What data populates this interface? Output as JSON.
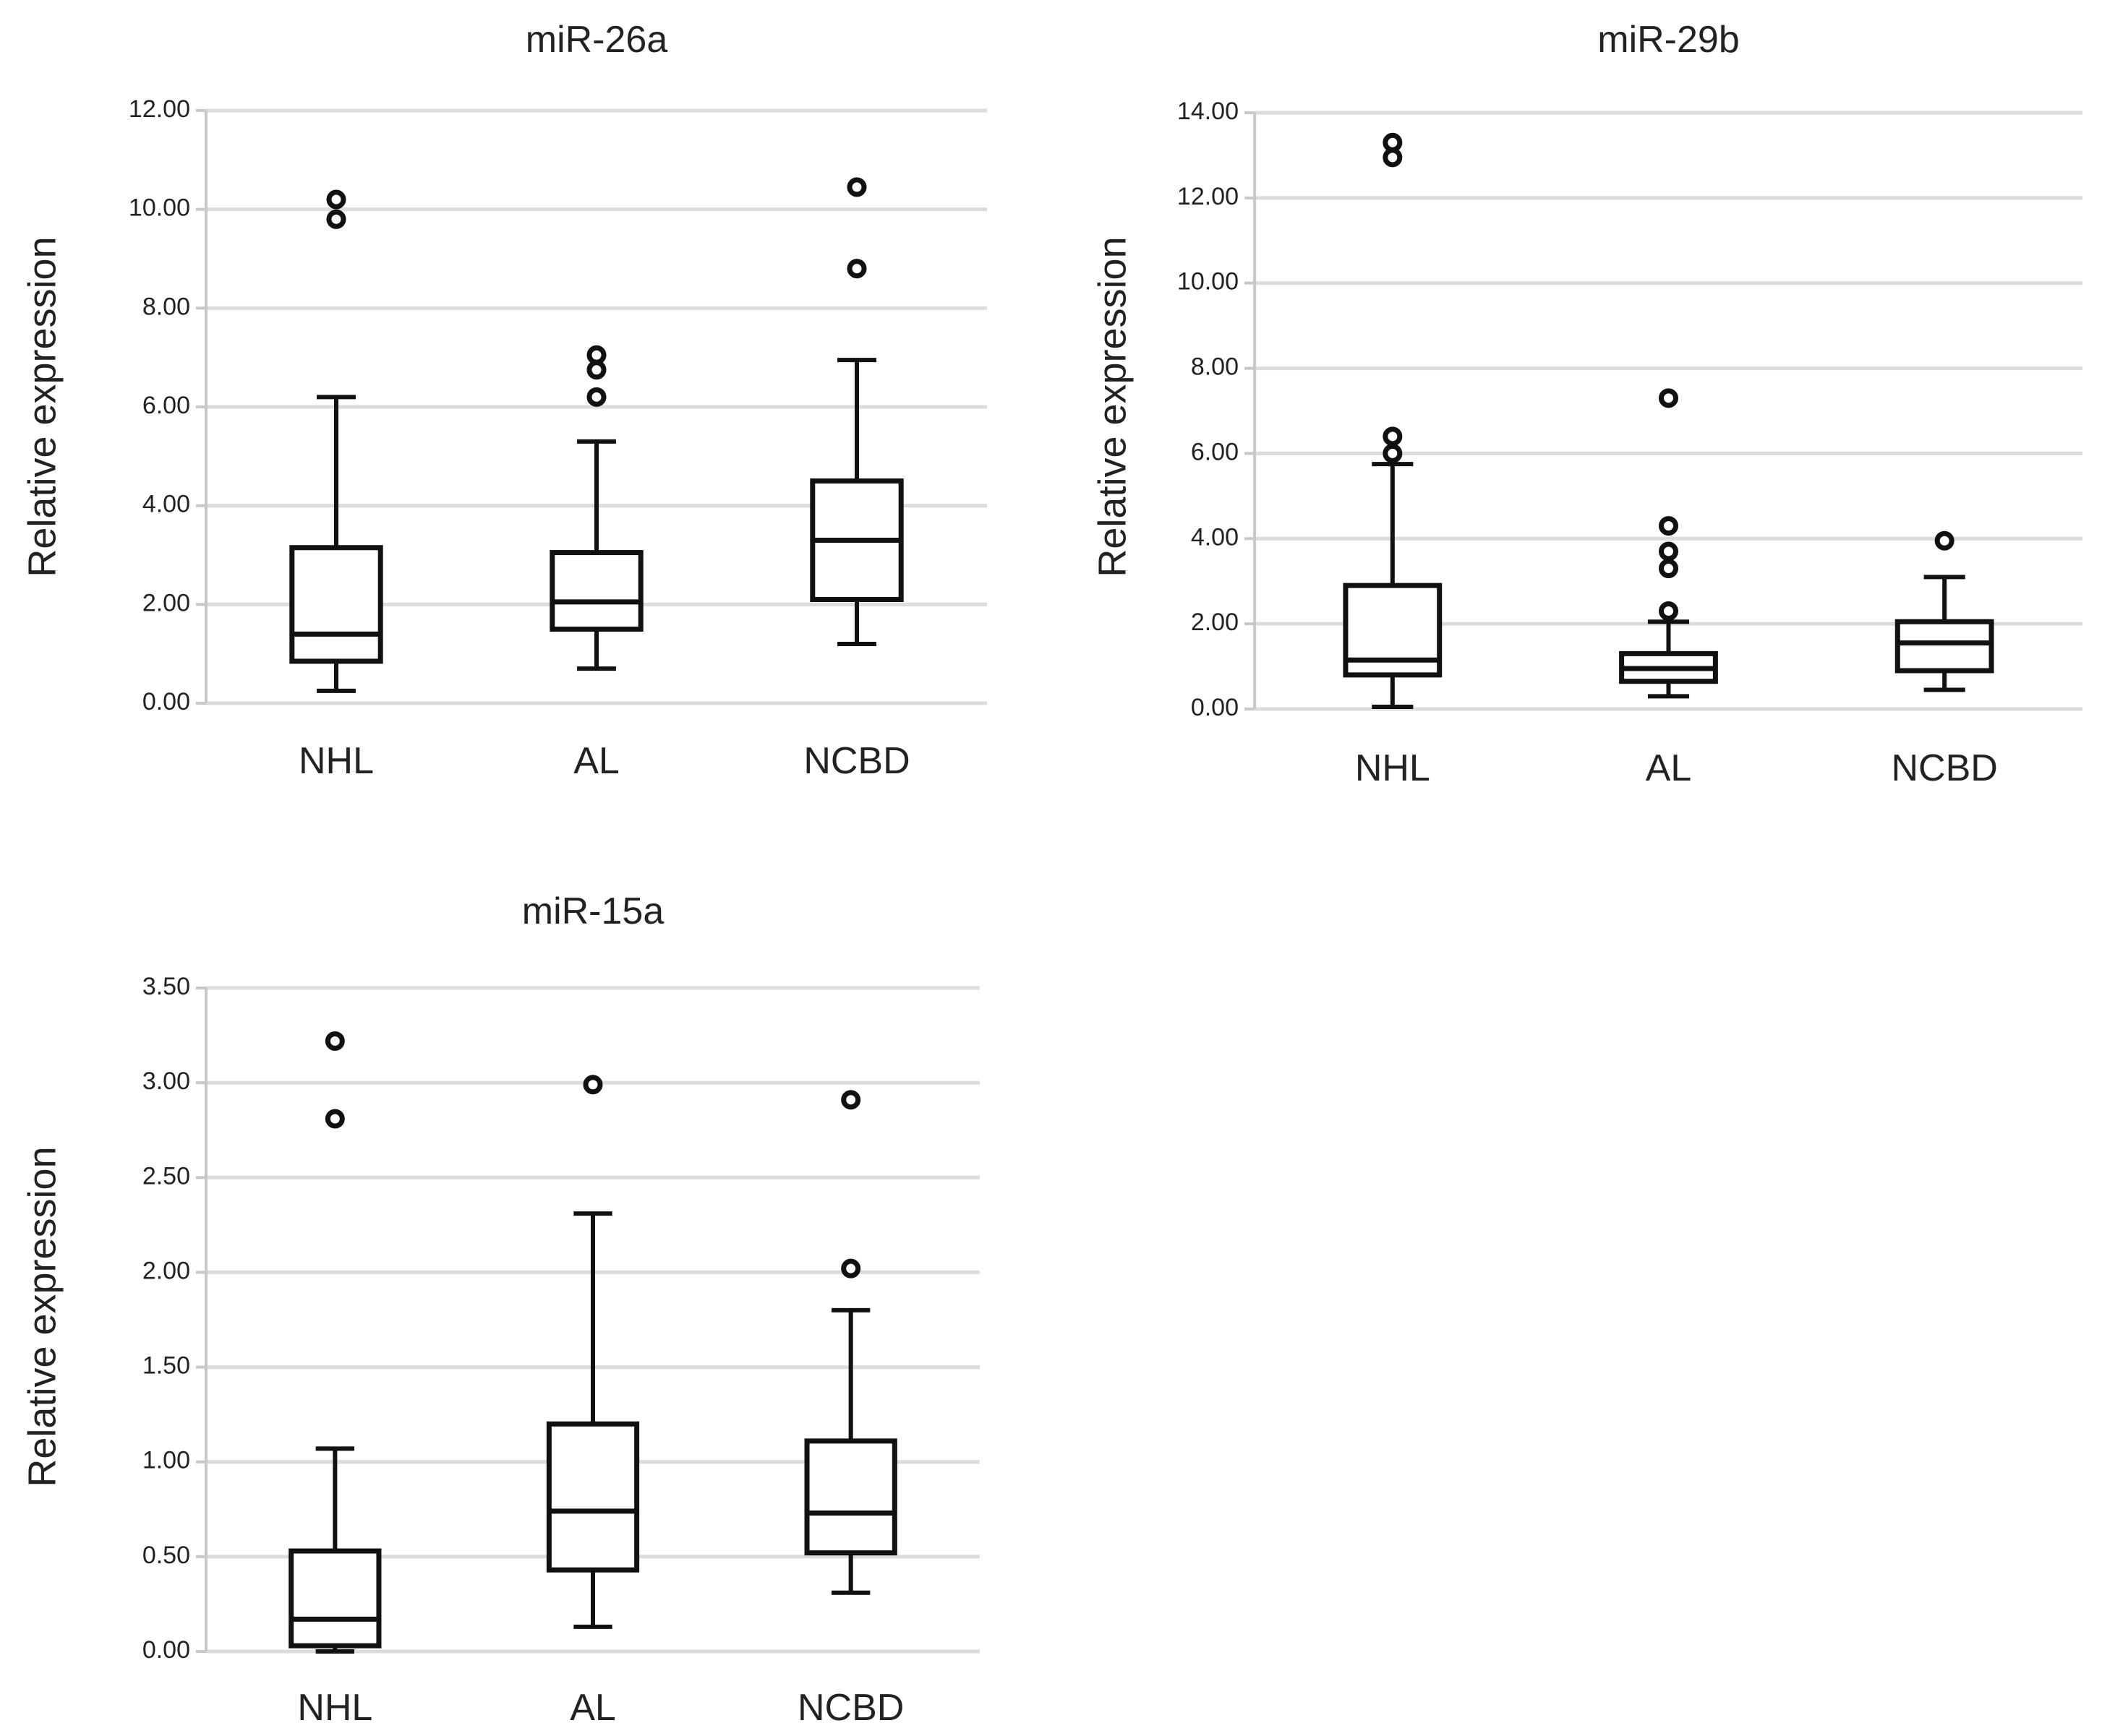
{
  "chart_data": [
    {
      "type": "box",
      "title": "miR-26a",
      "xlabel": "",
      "ylabel": "Relative expression",
      "ylim": [
        0,
        12
      ],
      "yticks": [
        0,
        2,
        4,
        6,
        8,
        10,
        12
      ],
      "ytick_labels": [
        "0.00",
        "2.00",
        "4.00",
        "6.00",
        "8.00",
        "10.00",
        "12.00"
      ],
      "categories": [
        "NHL",
        "AL",
        "NCBD"
      ],
      "boxes": [
        {
          "name": "NHL",
          "whisker_low": 0.25,
          "q1": 0.85,
          "median": 1.4,
          "q3": 3.15,
          "whisker_high": 6.2,
          "outliers": [
            9.8,
            10.2
          ]
        },
        {
          "name": "AL",
          "whisker_low": 0.7,
          "q1": 1.5,
          "median": 2.05,
          "q3": 3.05,
          "whisker_high": 5.3,
          "outliers": [
            6.2,
            6.75,
            7.05
          ]
        },
        {
          "name": "NCBD",
          "whisker_low": 1.2,
          "q1": 2.1,
          "median": 3.3,
          "q3": 4.5,
          "whisker_high": 6.95,
          "outliers": [
            8.8,
            10.45
          ]
        }
      ],
      "grid": true
    },
    {
      "type": "box",
      "title": "miR-29b",
      "xlabel": "",
      "ylabel": "Relative expression",
      "ylim": [
        0,
        14
      ],
      "yticks": [
        0,
        2,
        4,
        6,
        8,
        10,
        12,
        14
      ],
      "ytick_labels": [
        "0.00",
        "2.00",
        "4.00",
        "6.00",
        "8.00",
        "10.00",
        "12.00",
        "14.00"
      ],
      "categories": [
        "NHL",
        "AL",
        "NCBD"
      ],
      "boxes": [
        {
          "name": "NHL",
          "whisker_low": 0.05,
          "q1": 0.8,
          "median": 1.15,
          "q3": 2.9,
          "whisker_high": 5.75,
          "outliers": [
            6.0,
            6.4,
            12.95,
            13.3
          ]
        },
        {
          "name": "AL",
          "whisker_low": 0.3,
          "q1": 0.65,
          "median": 0.95,
          "q3": 1.3,
          "whisker_high": 2.05,
          "outliers": [
            2.3,
            3.3,
            3.7,
            4.3,
            7.3
          ]
        },
        {
          "name": "NCBD",
          "whisker_low": 0.45,
          "q1": 0.9,
          "median": 1.55,
          "q3": 2.05,
          "whisker_high": 3.1,
          "outliers": [
            3.95
          ]
        }
      ],
      "grid": true
    },
    {
      "type": "box",
      "title": "miR-15a",
      "xlabel": "",
      "ylabel": "Relative expression",
      "ylim": [
        0,
        3.5
      ],
      "yticks": [
        0,
        0.5,
        1,
        1.5,
        2,
        2.5,
        3,
        3.5
      ],
      "ytick_labels": [
        "0.00",
        "0.50",
        "1.00",
        "1.50",
        "2.00",
        "2.50",
        "3.00",
        "3.50"
      ],
      "categories": [
        "NHL",
        "AL",
        "NCBD"
      ],
      "boxes": [
        {
          "name": "NHL",
          "whisker_low": 0.0,
          "q1": 0.03,
          "median": 0.17,
          "q3": 0.53,
          "whisker_high": 1.07,
          "outliers": [
            2.81,
            3.22
          ]
        },
        {
          "name": "AL",
          "whisker_low": 0.13,
          "q1": 0.43,
          "median": 0.74,
          "q3": 1.2,
          "whisker_high": 2.31,
          "outliers": [
            2.99
          ]
        },
        {
          "name": "NCBD",
          "whisker_low": 0.31,
          "q1": 0.52,
          "median": 0.73,
          "q3": 1.11,
          "whisker_high": 1.8,
          "outliers": [
            2.02,
            2.91
          ]
        }
      ],
      "grid": true
    }
  ]
}
